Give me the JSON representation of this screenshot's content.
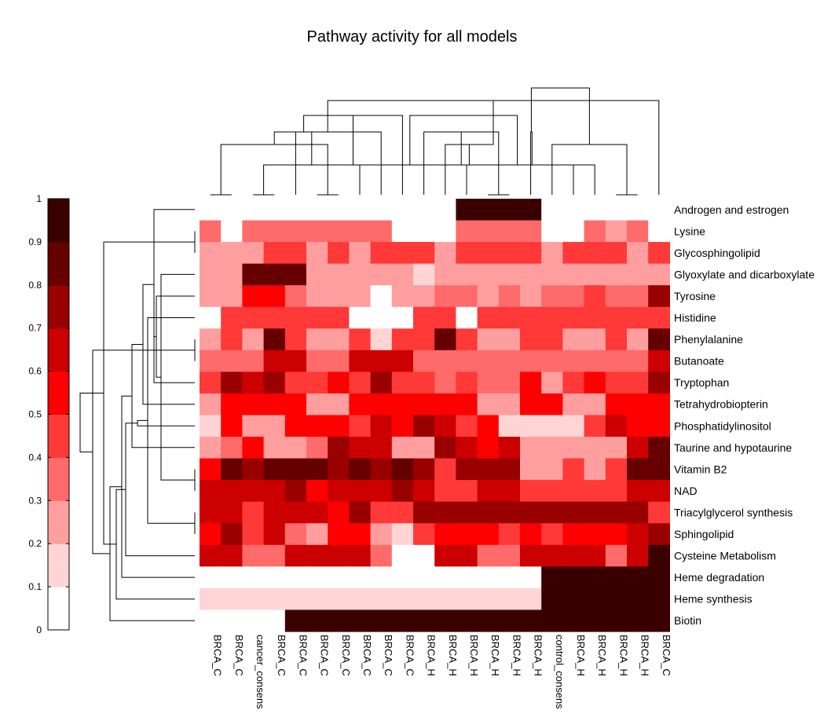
{
  "chart_data": {
    "type": "heatmap",
    "title": "Pathway activity for all models",
    "columns": [
      "BRCA_C",
      "BRCA_C",
      "cancer_consens",
      "BRCA_C",
      "BRCA_C",
      "BRCA_C",
      "BRCA_C",
      "BRCA_C",
      "BRCA_C",
      "BRCA_C",
      "BRCA_H",
      "BRCA_H",
      "BRCA_H",
      "BRCA_H",
      "BRCA_H",
      "BRCA_H",
      "control_consens",
      "BRCA_H",
      "BRCA_H",
      "BRCA_H",
      "BRCA_H",
      "BRCA_C"
    ],
    "rows": [
      "Androgen and estrogen",
      "Lysine",
      "Glycosphingolipid",
      "Glyoxylate and dicarboxylate",
      "Tyrosine",
      "Histidine",
      "Phenylalanine",
      "Butanoate",
      "Tryptophan",
      "Tetrahydrobiopterin",
      "Phosphatidylinositol",
      "Taurine and hypotaurine",
      "Vitamin B2",
      "NAD",
      "Triacylglycerol synthesis",
      "Sphingolipid",
      "Cysteine Metabolism",
      "Heme degradation",
      "Heme synthesis",
      "Biotin"
    ],
    "values": [
      [
        0,
        0,
        0,
        0,
        0,
        0,
        0,
        0,
        0,
        0,
        0,
        0,
        1,
        1,
        1,
        1,
        0,
        0,
        0,
        0,
        0,
        0
      ],
      [
        0.4,
        0,
        0.4,
        0.4,
        0.4,
        0.4,
        0.4,
        0.4,
        0.4,
        0,
        0,
        0,
        0.4,
        0.4,
        0.4,
        0.4,
        0,
        0,
        0.4,
        0.3,
        0.4,
        0
      ],
      [
        0.3,
        0.3,
        0.3,
        0.5,
        0.5,
        0.3,
        0.5,
        0.3,
        0.5,
        0.5,
        0.5,
        0.3,
        0.5,
        0.5,
        0.5,
        0.5,
        0.3,
        0.5,
        0.5,
        0.5,
        0.3,
        0.5
      ],
      [
        0.3,
        0.3,
        0.9,
        0.9,
        0.9,
        0.3,
        0.3,
        0.3,
        0.3,
        0.3,
        0.2,
        0.3,
        0.3,
        0.3,
        0.3,
        0.3,
        0.3,
        0.3,
        0.3,
        0.3,
        0.3,
        0.3
      ],
      [
        0.3,
        0.3,
        0.6,
        0.6,
        0.4,
        0.3,
        0.3,
        0.3,
        0,
        0.3,
        0.3,
        0.4,
        0.4,
        0.3,
        0.4,
        0.3,
        0.4,
        0.4,
        0.5,
        0.4,
        0.4,
        0.8
      ],
      [
        0,
        0.5,
        0.5,
        0.5,
        0.5,
        0.5,
        0.5,
        0,
        0,
        0,
        0.5,
        0.5,
        0,
        0.5,
        0.5,
        0.5,
        0.5,
        0.5,
        0.5,
        0.5,
        0.5,
        0.5
      ],
      [
        0.3,
        0.5,
        0.3,
        0.9,
        0.5,
        0.3,
        0.3,
        0.5,
        0.2,
        0.5,
        0.5,
        0.9,
        0.5,
        0.3,
        0.3,
        0.5,
        0.5,
        0.3,
        0.3,
        0.5,
        0.3,
        0.9
      ],
      [
        0.4,
        0.4,
        0.4,
        0.7,
        0.7,
        0.4,
        0.4,
        0.7,
        0.7,
        0.7,
        0.4,
        0.4,
        0.4,
        0.4,
        0.4,
        0.4,
        0.4,
        0.4,
        0.4,
        0.4,
        0.4,
        0.7
      ],
      [
        0.5,
        0.8,
        0.7,
        0.8,
        0.5,
        0.5,
        0.6,
        0.5,
        0.8,
        0.5,
        0.5,
        0.4,
        0.5,
        0.4,
        0.4,
        0.6,
        0.3,
        0.5,
        0.6,
        0.5,
        0.5,
        0.8
      ],
      [
        0.3,
        0.6,
        0.6,
        0.6,
        0.6,
        0.3,
        0.3,
        0.6,
        0.6,
        0.6,
        0.6,
        0.6,
        0.6,
        0.3,
        0.3,
        0.6,
        0.6,
        0.3,
        0.3,
        0.6,
        0.6,
        0.6
      ],
      [
        0.2,
        0.6,
        0.3,
        0.3,
        0.6,
        0.6,
        0.6,
        0.5,
        0.7,
        0.6,
        0.8,
        0.7,
        0.5,
        0.6,
        0.2,
        0.2,
        0.2,
        0.2,
        0.5,
        0.7,
        0.6,
        0.6
      ],
      [
        0.3,
        0.4,
        0.6,
        0.3,
        0.3,
        0.4,
        0.8,
        0.7,
        0.7,
        0.3,
        0.3,
        0.8,
        0.7,
        0.6,
        0.7,
        0.3,
        0.3,
        0.3,
        0.3,
        0.3,
        0.7,
        0.9
      ],
      [
        0.6,
        0.9,
        0.8,
        0.9,
        0.9,
        0.9,
        0.8,
        0.9,
        0.8,
        0.9,
        0.8,
        0.5,
        0.8,
        0.8,
        0.8,
        0.3,
        0.3,
        0.5,
        0.3,
        0.5,
        0.9,
        0.9
      ],
      [
        0.7,
        0.7,
        0.7,
        0.7,
        0.8,
        0.6,
        0.7,
        0.7,
        0.7,
        0.8,
        0.7,
        0.5,
        0.5,
        0.7,
        0.7,
        0.5,
        0.5,
        0.5,
        0.5,
        0.5,
        0.7,
        0.7
      ],
      [
        0.7,
        0.7,
        0.5,
        0.7,
        0.7,
        0.7,
        0.6,
        0.8,
        0.5,
        0.5,
        0.8,
        0.8,
        0.8,
        0.8,
        0.8,
        0.8,
        0.8,
        0.8,
        0.8,
        0.8,
        0.8,
        0.5
      ],
      [
        0.6,
        0.8,
        0.5,
        0.7,
        0.4,
        0.3,
        0.6,
        0.6,
        0.3,
        0.2,
        0.5,
        0.6,
        0.6,
        0.6,
        0.5,
        0.6,
        0.5,
        0.6,
        0.6,
        0.6,
        0.7,
        0.8
      ],
      [
        0.7,
        0.7,
        0.4,
        0.4,
        0.7,
        0.7,
        0.7,
        0.7,
        0.4,
        0,
        0,
        0.7,
        0.7,
        0.4,
        0.4,
        0.7,
        0.7,
        0.7,
        0.7,
        0.4,
        0.7,
        1
      ],
      [
        0,
        0,
        0,
        0,
        0,
        0,
        0,
        0,
        0,
        0,
        0,
        0,
        0,
        0,
        0,
        0,
        1,
        1,
        1,
        1,
        1,
        1
      ],
      [
        0.2,
        0.2,
        0.2,
        0.2,
        0.2,
        0.2,
        0.2,
        0.2,
        0.2,
        0.2,
        0.2,
        0.2,
        0.2,
        0.2,
        0.2,
        0.2,
        1,
        1,
        1,
        1,
        1,
        1
      ],
      [
        0,
        0,
        0,
        0,
        1,
        1,
        1,
        1,
        1,
        1,
        1,
        1,
        1,
        1,
        1,
        1,
        1,
        1,
        1,
        1,
        1,
        1
      ]
    ],
    "colorbar": {
      "ticks": [
        "0",
        "0.1",
        "0.2",
        "0.3",
        "0.4",
        "0.5",
        "0.6",
        "0.7",
        "0.8",
        "0.9",
        "1"
      ],
      "colors": [
        "#ffffff",
        "#ffd4d4",
        "#ff9e9e",
        "#ff6a6a",
        "#ff3838",
        "#ff0000",
        "#cc0000",
        "#990000",
        "#660000",
        "#3a0000"
      ]
    },
    "column_dendrogram": [
      [
        0,
        1,
        0
      ],
      [
        2,
        3,
        0
      ],
      [
        5,
        6,
        0
      ],
      [
        7,
        23,
        1
      ],
      [
        22,
        24,
        2
      ],
      [
        4,
        25,
        3
      ],
      [
        8,
        26,
        3
      ],
      [
        9,
        27,
        4
      ],
      [
        21,
        28,
        5
      ],
      [
        13,
        14,
        0
      ],
      [
        12,
        29,
        1
      ],
      [
        11,
        30,
        2
      ],
      [
        10,
        31,
        3
      ],
      [
        19,
        20,
        0
      ],
      [
        18,
        33,
        1
      ],
      [
        17,
        34,
        1
      ],
      [
        16,
        35,
        2
      ],
      [
        15,
        36,
        3
      ],
      [
        32,
        37,
        4
      ],
      [
        38,
        39,
        6
      ]
    ],
    "row_dendrogram": [
      [
        1,
        2,
        0
      ],
      [
        6,
        7,
        0
      ],
      [
        12,
        13,
        0
      ],
      [
        3,
        22,
        1
      ],
      [
        4,
        23,
        2
      ],
      [
        8,
        24,
        3
      ],
      [
        14,
        15,
        0
      ],
      [
        0,
        25,
        3
      ],
      [
        5,
        26,
        4
      ],
      [
        9,
        27,
        5
      ],
      [
        10,
        28,
        6
      ],
      [
        11,
        29,
        7
      ],
      [
        16,
        30,
        8
      ],
      [
        17,
        31,
        9
      ],
      [
        18,
        32,
        10
      ],
      [
        19,
        33,
        11
      ],
      [
        20,
        34,
        12
      ],
      [
        21,
        35,
        13
      ],
      [
        36,
        37,
        14
      ]
    ]
  }
}
